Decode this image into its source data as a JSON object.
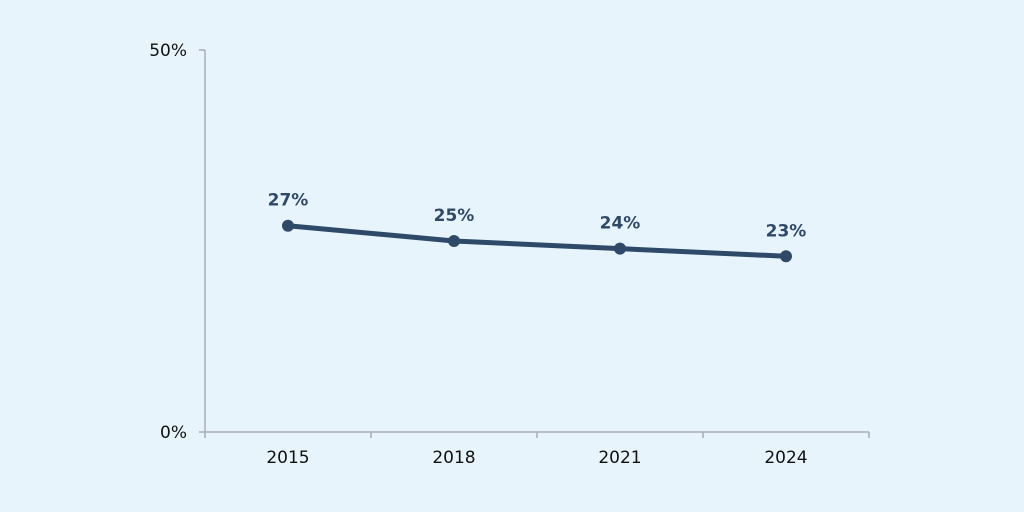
{
  "chart_data": {
    "type": "line",
    "title": "",
    "xlabel": "",
    "ylabel": "",
    "x": [
      "2015",
      "2018",
      "2021",
      "2024"
    ],
    "ylim": [
      0,
      50
    ],
    "y_ticks": [
      {
        "value": 0,
        "label": "0%"
      },
      {
        "value": 50,
        "label": "50%"
      }
    ],
    "series": [
      {
        "values": [
          27,
          25,
          24,
          23
        ],
        "data_labels": [
          "27%",
          "25%",
          "24%",
          "23%"
        ],
        "color": "#2e4a68"
      }
    ],
    "grid": false,
    "legend": "none"
  },
  "colors": {
    "background": "#e8f4fc",
    "axis": "#a7adb5",
    "series": "#2e4a68",
    "text": "#111111"
  }
}
